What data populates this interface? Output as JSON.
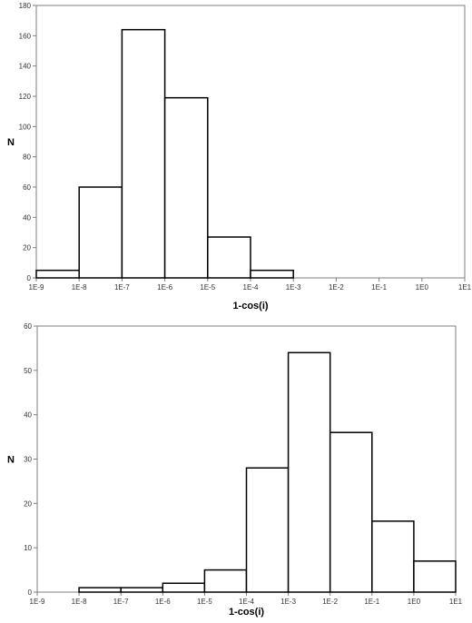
{
  "chart_data": [
    {
      "type": "bar",
      "subtype": "histogram",
      "xscale": "log",
      "bin_edges": [
        "1E-9",
        "1E-8",
        "1E-7",
        "1E-6",
        "1E-5",
        "1E-4",
        "1E-3",
        "1E-2",
        "1E-1",
        "1E0",
        "1E1"
      ],
      "values": [
        5,
        60,
        164,
        119,
        27,
        5,
        0,
        0,
        0,
        0
      ],
      "xlabel": "1-cos(i)",
      "ylabel": "N",
      "ylim": [
        0,
        180
      ],
      "yticks": [
        0,
        20,
        40,
        60,
        80,
        100,
        120,
        140,
        160,
        180
      ],
      "grid": false,
      "legend": "none",
      "bar_fill": "#ffffff",
      "bar_stroke": "#000000"
    },
    {
      "type": "bar",
      "subtype": "histogram",
      "xscale": "log",
      "bin_edges": [
        "1E-9",
        "1E-8",
        "1E-7",
        "1E-6",
        "1E-5",
        "1E-4",
        "1E-3",
        "1E-2",
        "1E-1",
        "1E0",
        "1E1"
      ],
      "values": [
        0,
        1,
        1,
        2,
        5,
        28,
        54,
        36,
        16,
        7
      ],
      "xlabel": "1-cos(i)",
      "ylabel": "N",
      "ylim": [
        0,
        60
      ],
      "yticks": [
        0,
        10,
        20,
        30,
        40,
        50,
        60
      ],
      "grid": false,
      "legend": "none",
      "bar_fill": "#ffffff",
      "bar_stroke": "#000000"
    }
  ]
}
